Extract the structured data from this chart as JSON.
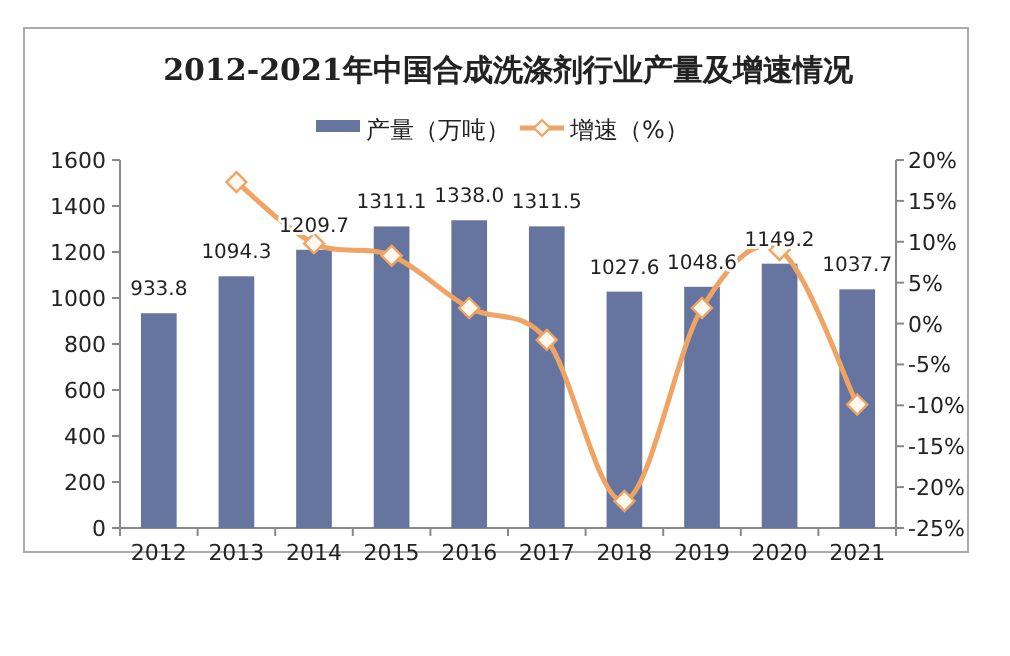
{
  "chart_data": {
    "type": "bar",
    "title": "2012-2021年中国合成洗涤剂行业产量及增速情况",
    "categories": [
      "2012",
      "2013",
      "2014",
      "2015",
      "2016",
      "2017",
      "2018",
      "2019",
      "2020",
      "2021"
    ],
    "series": [
      {
        "name": "产量（万吨）",
        "color": "#6674a0",
        "values": [
          933.8,
          1094.3,
          1209.7,
          1311.1,
          1338.0,
          1311.5,
          1027.6,
          1048.6,
          1149.2,
          1037.7
        ],
        "value_labels": [
          "933.8",
          "1094.3",
          "1209.7",
          "1311.1",
          "1338.0",
          "1311.5",
          "1027.6",
          "1048.6",
          "1149.2",
          "1037.7"
        ]
      },
      {
        "name": "增速（%）",
        "type": "line",
        "axis": "y2",
        "color": "#f0a464",
        "marker": "diamond",
        "values": [
          null,
          17.3,
          9.8,
          8.3,
          1.9,
          -2.0,
          -21.7,
          1.9,
          9.0,
          -9.9
        ]
      }
    ],
    "ylim": [
      0,
      1600
    ],
    "yticks": [
      0,
      200,
      400,
      600,
      800,
      1000,
      1200,
      1400,
      1600
    ],
    "y2lim": [
      -25,
      20
    ],
    "y2ticks": [
      {
        "value": -25,
        "label": "-25%"
      },
      {
        "value": -20,
        "label": "-20%"
      },
      {
        "value": -15,
        "label": "-15%"
      },
      {
        "value": -10,
        "label": "-10%"
      },
      {
        "value": -5,
        "label": "-5%"
      },
      {
        "value": 0,
        "label": "0%"
      },
      {
        "value": 5,
        "label": "5%"
      },
      {
        "value": 10,
        "label": "10%"
      },
      {
        "value": 15,
        "label": "15%"
      },
      {
        "value": 20,
        "label": "20%"
      }
    ],
    "legend": "top",
    "grid": false
  }
}
